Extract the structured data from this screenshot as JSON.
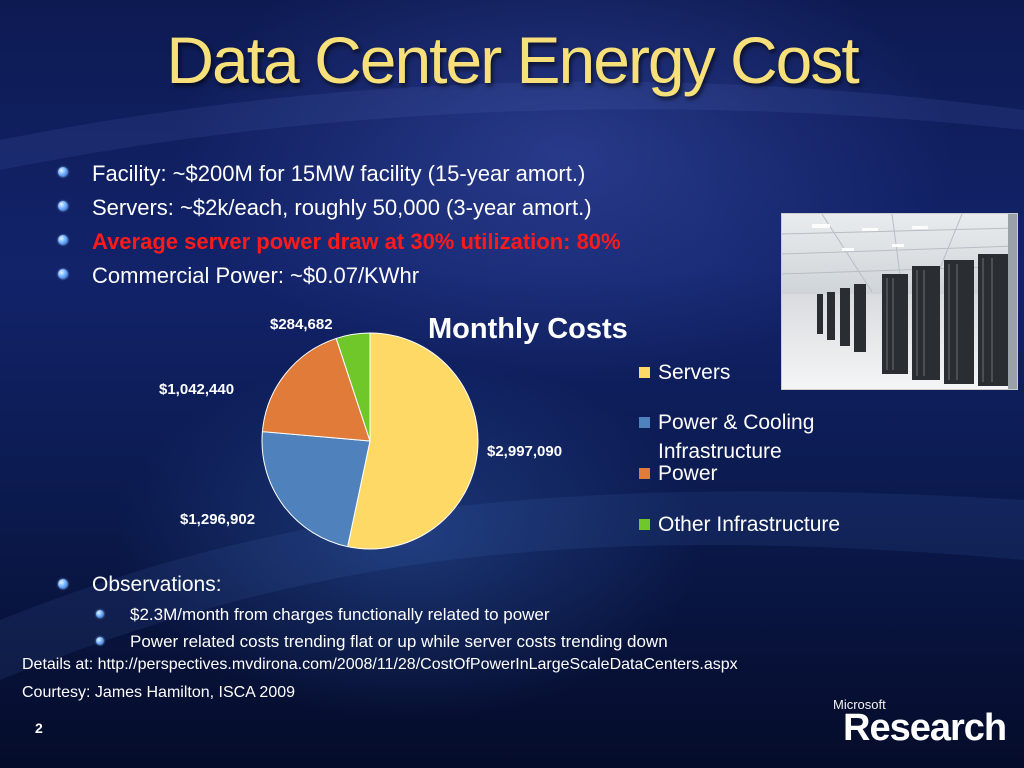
{
  "slide": {
    "title": "Data Center Energy Cost",
    "page_number": "2"
  },
  "bullets": [
    "Facility: ~$200M for 15MW facility (15-year amort.)",
    "Servers: ~$2k/each, roughly 50,000 (3-year amort.)",
    "Average server power draw at 30% utilization: 80%",
    "Commercial Power: ~$0.07/KWhr"
  ],
  "observations": {
    "heading": "Observations:",
    "items": [
      "$2.3M/month from charges functionally related to power",
      "Power related costs trending flat or up while server costs trending down"
    ]
  },
  "footer": {
    "details": "Details at: http://perspectives.mvdirona.com/2008/11/28/CostOfPowerInLargeScaleDataCenters.aspx",
    "courtesy": "Courtesy: James Hamilton, ISCA 2009"
  },
  "brand": {
    "small": "Microsoft",
    "big": "Research"
  },
  "colors": {
    "title": "#f7e07a",
    "highlight_text": "#ff1a1a",
    "servers": "#ffd966",
    "power_cooling": "#4f81bd",
    "power": "#e07b39",
    "other": "#70c72a"
  },
  "chart_data": {
    "type": "pie",
    "title": "Monthly Costs",
    "categories": [
      "Servers",
      "Power & Cooling Infrastructure",
      "Power",
      "Other Infrastructure"
    ],
    "values": [
      2997090,
      1296902,
      1042440,
      284682
    ],
    "data_labels": [
      "$2,997,090",
      "$1,296,902",
      "$1,042,440",
      "$284,682"
    ],
    "colors": [
      "#ffd966",
      "#4f81bd",
      "#e07b39",
      "#70c72a"
    ],
    "legend_position": "right"
  }
}
